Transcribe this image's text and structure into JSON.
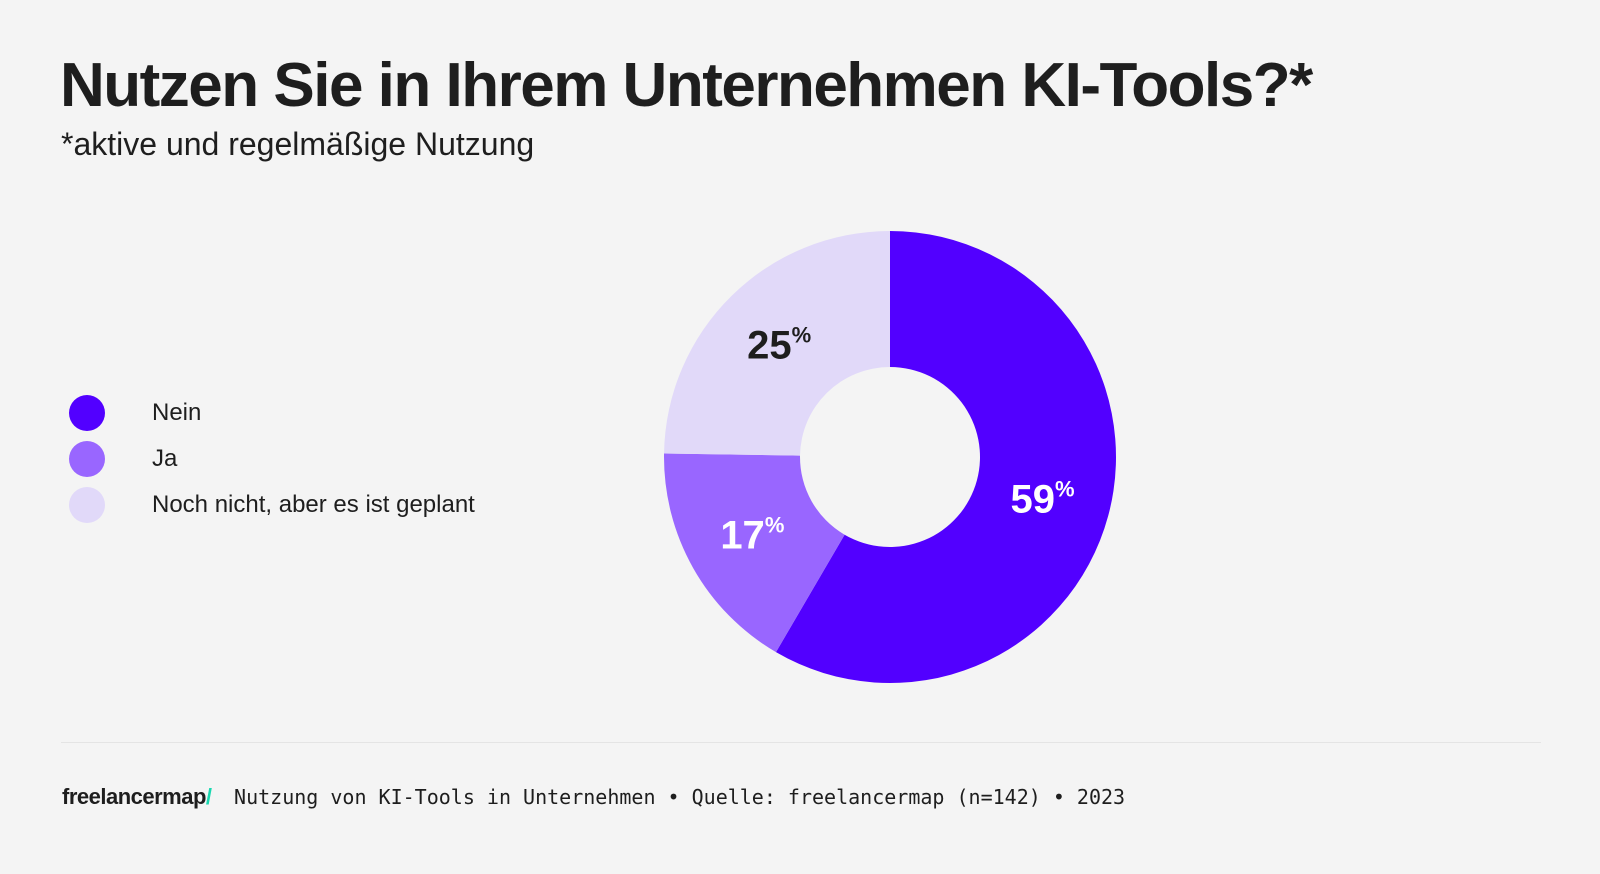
{
  "chart_data": {
    "type": "pie",
    "variant": "donut",
    "title": "Nutzen Sie in Ihrem Unternehmen KI-Tools?*",
    "subtitle": "*aktive und regelmäßige Nutzung",
    "categories": [
      "Nein",
      "Ja",
      "Noch nicht, aber es ist geplant"
    ],
    "values": [
      59,
      17,
      25
    ],
    "labels": [
      "59",
      "17",
      "25"
    ],
    "unit": "%",
    "colors": [
      "#5200ff",
      "#9966ff",
      "#e1d9f9"
    ],
    "label_colors": [
      "#ffffff",
      "#ffffff",
      "#1e1e1e"
    ],
    "legend_position": "left"
  },
  "footer": {
    "logo": "freelancermap",
    "logo_slash": "/",
    "text": "Nutzung von KI-Tools in Unternehmen • Quelle: freelancermap (n=142) • 2023"
  }
}
